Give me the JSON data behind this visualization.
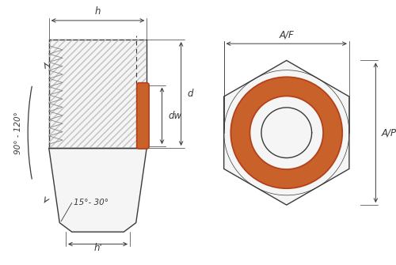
{
  "bg_color": "#ffffff",
  "line_color": "#3a3a3a",
  "oring_color": "#b5401a",
  "oring_fill": "#c8622a",
  "labels": {
    "h_prime": "h'",
    "angle": "15°- 30°",
    "side_angle": "90° - 120°",
    "d": "d",
    "dw": "dw",
    "h": "h",
    "af": "A/F",
    "ap": "A/P"
  }
}
